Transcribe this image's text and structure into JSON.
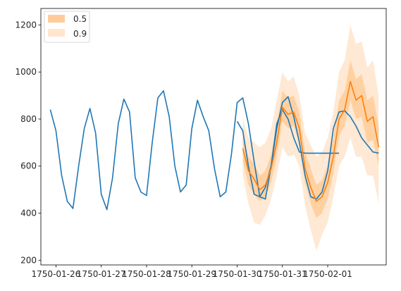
{
  "chart_data": {
    "type": "line",
    "title": "",
    "xlabel": "",
    "ylabel": "",
    "x_range": [
      "1750-01-25T16:00",
      "1750-02-02T07:00"
    ],
    "ylim": [
      180,
      1270
    ],
    "grid": false,
    "legend_placement": "upper left",
    "x_ticks": [
      "1750-01-26",
      "1750-01-27",
      "1750-01-28",
      "1750-01-29",
      "1750-01-30",
      "1750-01-31",
      "1750-02-01"
    ],
    "y_ticks": [
      200,
      400,
      600,
      800,
      1000,
      1200
    ],
    "colors": {
      "observed": "#1f77b4",
      "forecast": "#ff7f0e",
      "band_50": "#ffcc99",
      "band_90": "#ffe5cc"
    },
    "legend": [
      {
        "label": "0.5",
        "color": "#ffcc99"
      },
      {
        "label": "0.9",
        "color": "#ffe5cc"
      }
    ],
    "series": [
      {
        "role": "observed",
        "x": [
          "1750-01-25T21:00",
          "1750-01-26T00:00",
          "1750-01-26T03:00",
          "1750-01-26T06:00",
          "1750-01-26T09:00",
          "1750-01-26T12:00",
          "1750-01-26T15:00",
          "1750-01-26T18:00",
          "1750-01-26T21:00",
          "1750-01-27T00:00",
          "1750-01-27T03:00",
          "1750-01-27T06:00",
          "1750-01-27T09:00",
          "1750-01-27T12:00",
          "1750-01-27T15:00",
          "1750-01-27T18:00",
          "1750-01-27T21:00",
          "1750-01-28T00:00",
          "1750-01-28T03:00",
          "1750-01-28T06:00",
          "1750-01-28T09:00",
          "1750-01-28T12:00",
          "1750-01-28T15:00",
          "1750-01-28T18:00",
          "1750-01-28T21:00",
          "1750-01-29T00:00",
          "1750-01-29T03:00",
          "1750-01-29T06:00",
          "1750-01-29T09:00",
          "1750-01-29T12:00",
          "1750-01-29T15:00",
          "1750-01-29T18:00",
          "1750-01-29T21:00",
          "1750-01-30T00:00",
          "1750-01-30T03:00",
          "1750-01-30T06:00",
          "1750-01-30T09:00",
          "1750-01-30T12:00",
          "1750-01-30T15:00",
          "1750-01-30T18:00",
          "1750-01-30T21:00",
          "1750-01-31T00:00",
          "1750-01-31T03:00",
          "1750-01-31T06:00",
          "1750-01-31T09:00",
          "1750-01-31T12:00",
          "1750-01-31T15:00",
          "1750-01-31T18:00",
          "1750-01-31T21:00",
          "1750-02-01T00:00",
          "1750-02-01T03:00",
          "1750-02-01T06:00"
        ],
        "values": [
          840,
          750,
          560,
          450,
          420,
          600,
          760,
          845,
          740,
          480,
          415,
          550,
          780,
          885,
          830,
          550,
          490,
          475,
          700,
          890,
          920,
          810,
          600,
          490,
          520,
          760,
          880,
          810,
          750,
          590,
          470,
          490,
          650,
          870,
          890,
          780,
          620,
          470,
          460,
          600,
          780,
          840,
          800,
          720,
          660,
          655,
          655,
          655,
          655,
          655,
          655,
          655
        ]
      },
      {
        "role": "observed",
        "x": [
          "1750-01-30T00:00",
          "1750-01-30T03:00",
          "1750-01-30T06:00",
          "1750-01-30T09:00",
          "1750-01-30T12:00",
          "1750-01-30T15:00",
          "1750-01-30T18:00",
          "1750-01-30T21:00",
          "1750-01-31T00:00",
          "1750-01-31T03:00",
          "1750-01-31T06:00",
          "1750-01-31T09:00",
          "1750-01-31T12:00",
          "1750-01-31T15:00",
          "1750-01-31T18:00",
          "1750-01-31T21:00",
          "1750-02-01T00:00",
          "1750-02-01T03:00",
          "1750-02-01T06:00",
          "1750-02-01T09:00",
          "1750-02-01T12:00",
          "1750-02-01T15:00",
          "1750-02-01T18:00",
          "1750-02-01T21:00",
          "1750-02-02T00:00",
          "1750-02-02T03:00"
        ],
        "values": [
          790,
          750,
          600,
          480,
          470,
          510,
          600,
          760,
          870,
          895,
          810,
          700,
          560,
          470,
          460,
          490,
          580,
          760,
          830,
          835,
          810,
          770,
          720,
          690,
          660,
          655
        ]
      },
      {
        "role": "forecast",
        "x": [
          "1750-01-30T03:00",
          "1750-01-30T06:00",
          "1750-01-30T09:00",
          "1750-01-30T12:00",
          "1750-01-30T15:00",
          "1750-01-30T18:00",
          "1750-01-30T21:00",
          "1750-01-31T00:00",
          "1750-01-31T03:00",
          "1750-01-31T06:00",
          "1750-01-31T09:00",
          "1750-01-31T12:00",
          "1750-01-31T15:00",
          "1750-01-31T18:00",
          "1750-01-31T21:00",
          "1750-02-01T00:00",
          "1750-02-01T03:00",
          "1750-02-01T06:00",
          "1750-02-01T09:00",
          "1750-02-01T12:00",
          "1750-02-01T15:00",
          "1750-02-01T18:00",
          "1750-02-01T21:00",
          "1750-02-02T00:00",
          "1750-02-02T03:00"
        ],
        "values": [
          675,
          580,
          545,
          500,
          520,
          590,
          700,
          850,
          820,
          830,
          760,
          590,
          510,
          450,
          470,
          530,
          640,
          800,
          840,
          960,
          880,
          900,
          790,
          810,
          680
        ]
      }
    ],
    "bands": [
      {
        "quantile": "0.9",
        "x": [
          "1750-01-30T03:00",
          "1750-01-30T06:00",
          "1750-01-30T09:00",
          "1750-01-30T12:00",
          "1750-01-30T15:00",
          "1750-01-30T18:00",
          "1750-01-30T21:00",
          "1750-01-31T00:00",
          "1750-01-31T03:00",
          "1750-01-31T06:00",
          "1750-01-31T09:00",
          "1750-01-31T12:00",
          "1750-01-31T15:00",
          "1750-01-31T18:00",
          "1750-01-31T21:00",
          "1750-02-01T00:00",
          "1750-02-01T03:00",
          "1750-02-01T06:00",
          "1750-02-01T09:00",
          "1750-02-01T12:00",
          "1750-02-01T15:00",
          "1750-02-01T18:00",
          "1750-02-01T21:00",
          "1750-02-02T00:00",
          "1750-02-02T03:00"
        ],
        "low": [
          560,
          440,
          360,
          350,
          390,
          460,
          560,
          680,
          640,
          650,
          600,
          430,
          330,
          240,
          310,
          360,
          470,
          600,
          640,
          720,
          640,
          640,
          560,
          560,
          440
        ],
        "high": [
          800,
          720,
          700,
          680,
          700,
          760,
          880,
          1000,
          960,
          980,
          900,
          740,
          690,
          640,
          660,
          720,
          830,
          1000,
          1050,
          1200,
          1120,
          1130,
          1020,
          1050,
          900
        ]
      },
      {
        "quantile": "0.5",
        "x": [
          "1750-01-30T03:00",
          "1750-01-30T06:00",
          "1750-01-30T09:00",
          "1750-01-30T12:00",
          "1750-01-30T15:00",
          "1750-01-30T18:00",
          "1750-01-30T21:00",
          "1750-01-31T00:00",
          "1750-01-31T03:00",
          "1750-01-31T06:00",
          "1750-01-31T09:00",
          "1750-01-31T12:00",
          "1750-01-31T15:00",
          "1750-01-31T18:00",
          "1750-01-31T21:00",
          "1750-02-01T00:00",
          "1750-02-01T03:00",
          "1750-02-01T06:00",
          "1750-02-01T09:00",
          "1750-02-01T12:00",
          "1750-02-01T15:00",
          "1750-02-01T18:00",
          "1750-02-01T21:00",
          "1750-02-02T00:00",
          "1750-02-02T03:00"
        ],
        "low": [
          620,
          520,
          480,
          450,
          470,
          530,
          640,
          790,
          760,
          770,
          700,
          530,
          440,
          380,
          400,
          460,
          570,
          730,
          770,
          880,
          800,
          810,
          700,
          710,
          600
        ],
        "high": [
          730,
          640,
          610,
          560,
          580,
          650,
          770,
          920,
          890,
          900,
          830,
          660,
          590,
          520,
          540,
          600,
          720,
          880,
          920,
          1050,
          970,
          990,
          880,
          900,
          770
        ]
      }
    ]
  }
}
